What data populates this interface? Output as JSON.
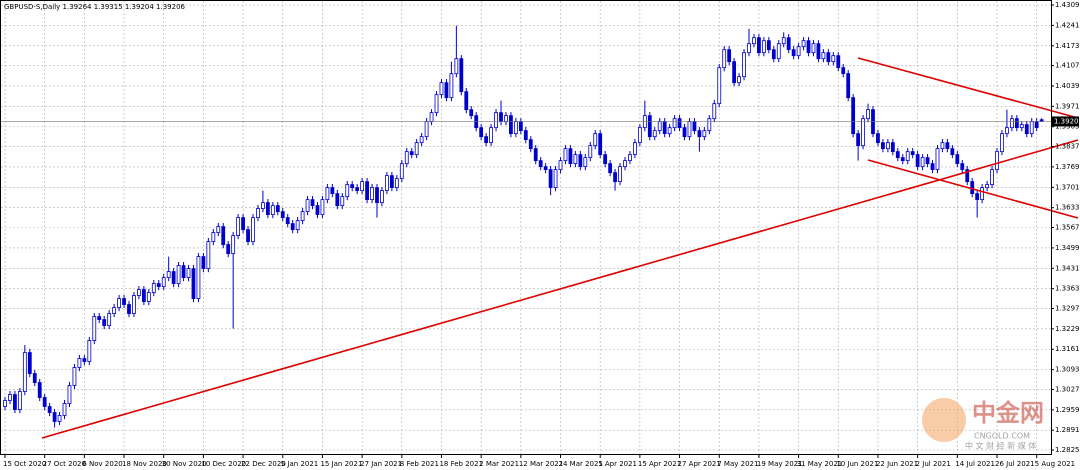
{
  "chart_data": {
    "type": "candlestick",
    "title": "GBPUSD-S,Daily  1.39264 1.39315 1.39204 1.39206",
    "up_color": "#ffffff",
    "down_color": "#0000cd",
    "outline_color": "#0000cd",
    "grid": true,
    "last_price": 1.39206,
    "ylim": [
      1.2825,
      1.4309
    ],
    "yticks": [
      {
        "value": 1.4309,
        "label": "1.43090"
      },
      {
        "value": 1.4241,
        "label": "1.42410"
      },
      {
        "value": 1.4173,
        "label": "1.41730"
      },
      {
        "value": 1.4107,
        "label": "1.41070"
      },
      {
        "value": 1.4039,
        "label": "1.40390"
      },
      {
        "value": 1.3971,
        "label": "1.39710"
      },
      {
        "value": 1.3903,
        "label": "1.39030"
      },
      {
        "value": 1.3837,
        "label": "1.38370"
      },
      {
        "value": 1.3769,
        "label": "1.37690"
      },
      {
        "value": 1.3701,
        "label": "1.37010"
      },
      {
        "value": 1.3633,
        "label": "1.36330"
      },
      {
        "value": 1.3567,
        "label": "1.35670"
      },
      {
        "value": 1.3499,
        "label": "1.34990"
      },
      {
        "value": 1.3431,
        "label": "1.34310"
      },
      {
        "value": 1.3363,
        "label": "1.33630"
      },
      {
        "value": 1.3297,
        "label": "1.32970"
      },
      {
        "value": 1.3229,
        "label": "1.32290"
      },
      {
        "value": 1.3161,
        "label": "1.31610"
      },
      {
        "value": 1.3093,
        "label": "1.30930"
      },
      {
        "value": 1.3027,
        "label": "1.30270"
      },
      {
        "value": 1.2959,
        "label": "1.29590"
      },
      {
        "value": 1.2891,
        "label": "1.28910"
      },
      {
        "value": 1.2825,
        "label": "1.28250"
      }
    ],
    "categories": [
      "15 Oct 2020",
      null,
      null,
      null,
      null,
      null,
      null,
      null,
      "27 Oct 2020",
      null,
      null,
      null,
      null,
      null,
      null,
      null,
      "6 Nov 2020",
      null,
      null,
      null,
      null,
      null,
      null,
      null,
      "18 Nov 2020",
      null,
      null,
      null,
      null,
      null,
      null,
      null,
      "30 Nov 2020",
      null,
      null,
      null,
      null,
      null,
      null,
      null,
      "10 Dec 2020",
      null,
      null,
      null,
      null,
      null,
      null,
      null,
      "22 Dec 2020",
      null,
      null,
      null,
      null,
      null,
      null,
      null,
      "5 Jan 2021",
      null,
      null,
      null,
      null,
      null,
      null,
      null,
      "15 Jan 2021",
      null,
      null,
      null,
      null,
      null,
      null,
      null,
      "27 Jan 2021",
      null,
      null,
      null,
      null,
      null,
      null,
      null,
      "8 Feb 2021",
      null,
      null,
      null,
      null,
      null,
      null,
      null,
      "18 Feb 2021",
      null,
      null,
      null,
      null,
      null,
      null,
      null,
      "2 Mar 2021",
      null,
      null,
      null,
      null,
      null,
      null,
      null,
      "12 Mar 2021",
      null,
      null,
      null,
      null,
      null,
      null,
      null,
      "24 Mar 2021",
      null,
      null,
      null,
      null,
      null,
      null,
      null,
      "5 Apr 2021",
      null,
      null,
      null,
      null,
      null,
      null,
      null,
      "15 Apr 2021",
      null,
      null,
      null,
      null,
      null,
      null,
      null,
      "27 Apr 2021",
      null,
      null,
      null,
      null,
      null,
      null,
      null,
      "7 May 2021",
      null,
      null,
      null,
      null,
      null,
      null,
      null,
      "19 May 2021",
      null,
      null,
      null,
      null,
      null,
      null,
      null,
      "31 May 2021",
      null,
      null,
      null,
      null,
      null,
      null,
      null,
      "10 Jun 2021",
      null,
      null,
      null,
      null,
      null,
      null,
      null,
      "22 Jun 2021",
      null,
      null,
      null,
      null,
      null,
      null,
      null,
      "2 Jul 2021",
      null,
      null,
      null,
      null,
      null,
      null,
      null,
      "14 Jul 2021",
      null,
      null,
      null,
      null,
      null,
      null,
      null,
      "26 Jul 2021",
      null,
      null,
      null,
      null,
      null,
      null,
      null,
      "5 Aug 2021",
      null
    ],
    "open": [
      1.297,
      1.299,
      1.301,
      1.296,
      1.302,
      1.315,
      1.308,
      1.305,
      1.3,
      1.297,
      1.295,
      1.292,
      1.294,
      1.298,
      1.304,
      1.31,
      1.313,
      1.312,
      1.319,
      1.327,
      1.326,
      1.324,
      1.328,
      1.33,
      1.333,
      1.331,
      1.328,
      1.334,
      1.336,
      1.332,
      1.335,
      1.338,
      1.337,
      1.34,
      1.342,
      1.338,
      1.344,
      1.34,
      1.343,
      1.333,
      1.347,
      1.343,
      1.352,
      1.355,
      1.357,
      1.351,
      1.348,
      1.354,
      1.36,
      1.356,
      1.352,
      1.36,
      1.363,
      1.365,
      1.361,
      1.364,
      1.362,
      1.36,
      1.358,
      1.356,
      1.359,
      1.362,
      1.366,
      1.364,
      1.361,
      1.366,
      1.37,
      1.368,
      1.364,
      1.367,
      1.371,
      1.37,
      1.369,
      1.372,
      1.366,
      1.37,
      1.365,
      1.369,
      1.374,
      1.37,
      1.373,
      1.378,
      1.382,
      1.381,
      1.385,
      1.387,
      1.392,
      1.395,
      1.401,
      1.405,
      1.4,
      1.408,
      1.413,
      1.402,
      1.396,
      1.394,
      1.39,
      1.387,
      1.385,
      1.39,
      1.395,
      1.392,
      1.394,
      1.388,
      1.392,
      1.389,
      1.386,
      1.383,
      1.379,
      1.377,
      1.376,
      1.37,
      1.376,
      1.379,
      1.383,
      1.378,
      1.381,
      1.377,
      1.38,
      1.384,
      1.388,
      1.381,
      1.378,
      1.375,
      1.372,
      1.377,
      1.379,
      1.381,
      1.385,
      1.39,
      1.394,
      1.387,
      1.389,
      1.392,
      1.388,
      1.39,
      1.393,
      1.39,
      1.387,
      1.392,
      1.389,
      1.387,
      1.389,
      1.393,
      1.398,
      1.41,
      1.416,
      1.412,
      1.405,
      1.407,
      1.415,
      1.418,
      1.42,
      1.415,
      1.419,
      1.416,
      1.413,
      1.418,
      1.42,
      1.416,
      1.414,
      1.417,
      1.419,
      1.415,
      1.418,
      1.413,
      1.415,
      1.412,
      1.414,
      1.41,
      1.408,
      1.4,
      1.388,
      1.384,
      1.393,
      1.396,
      1.388,
      1.385,
      1.383,
      1.385,
      1.382,
      1.38,
      1.379,
      1.382,
      1.381,
      1.377,
      1.38,
      1.378,
      1.376,
      1.383,
      1.385,
      1.383,
      1.381,
      1.378,
      1.376,
      1.372,
      1.368,
      1.366,
      1.37,
      1.371,
      1.376,
      1.382,
      1.388,
      1.39,
      1.393,
      1.39,
      1.391,
      1.388,
      1.392,
      1.39264
    ],
    "high": [
      1.3002,
      1.3022,
      1.3022,
      1.3032,
      1.3175,
      1.3162,
      1.3092,
      1.3062,
      1.3012,
      1.2982,
      1.2962,
      1.2952,
      1.2992,
      1.3052,
      1.3112,
      1.3142,
      1.3142,
      1.3202,
      1.3282,
      1.3282,
      1.3272,
      1.3292,
      1.3312,
      1.3342,
      1.3342,
      1.3322,
      1.3352,
      1.3372,
      1.3372,
      1.3362,
      1.3392,
      1.3392,
      1.3412,
      1.347,
      1.3432,
      1.3452,
      1.3452,
      1.3442,
      1.3442,
      1.3482,
      1.3482,
      1.3532,
      1.3562,
      1.3582,
      1.3582,
      1.3522,
      1.3552,
      1.3612,
      1.3612,
      1.3572,
      1.3612,
      1.3642,
      1.369,
      1.3662,
      1.3652,
      1.3652,
      1.3632,
      1.3612,
      1.3592,
      1.3602,
      1.3632,
      1.3672,
      1.3672,
      1.3652,
      1.3672,
      1.3712,
      1.3712,
      1.3692,
      1.3682,
      1.3722,
      1.3722,
      1.3712,
      1.3732,
      1.3732,
      1.3712,
      1.3712,
      1.3702,
      1.3752,
      1.3752,
      1.3742,
      1.3792,
      1.3832,
      1.3832,
      1.3862,
      1.3882,
      1.3932,
      1.3962,
      1.4022,
      1.4062,
      1.4062,
      1.412,
      1.424,
      1.4142,
      1.4032,
      1.3972,
      1.3952,
      1.3912,
      1.3882,
      1.3912,
      1.3962,
      1.399,
      1.3952,
      1.3952,
      1.3932,
      1.3932,
      1.3902,
      1.3872,
      1.3842,
      1.3802,
      1.3782,
      1.3772,
      1.3772,
      1.3802,
      1.3842,
      1.3842,
      1.3822,
      1.3822,
      1.3812,
      1.3852,
      1.3892,
      1.3892,
      1.3822,
      1.3792,
      1.3762,
      1.3782,
      1.3802,
      1.3822,
      1.3862,
      1.3912,
      1.399,
      1.3952,
      1.3902,
      1.3932,
      1.3932,
      1.3912,
      1.3942,
      1.3942,
      1.3912,
      1.3932,
      1.3932,
      1.3902,
      1.3902,
      1.3942,
      1.3992,
      1.4112,
      1.4172,
      1.4172,
      1.4132,
      1.4082,
      1.4162,
      1.423,
      1.4212,
      1.4212,
      1.4202,
      1.4202,
      1.4172,
      1.4192,
      1.4218,
      1.4212,
      1.4172,
      1.4182,
      1.4202,
      1.4202,
      1.4192,
      1.4192,
      1.4162,
      1.4162,
      1.4152,
      1.4152,
      1.4112,
      1.4092,
      1.4012,
      1.3892,
      1.3942,
      1.398,
      1.3972,
      1.3892,
      1.3862,
      1.3862,
      1.3862,
      1.3832,
      1.3812,
      1.3832,
      1.3832,
      1.3822,
      1.3812,
      1.3812,
      1.3792,
      1.3842,
      1.3862,
      1.3862,
      1.3842,
      1.3822,
      1.3792,
      1.3772,
      1.3732,
      1.3692,
      1.3712,
      1.3722,
      1.3772,
      1.3832,
      1.3892,
      1.396,
      1.3942,
      1.3942,
      1.3922,
      1.3922,
      1.3932,
      1.3932,
      1.39315
    ],
    "low": [
      1.2958,
      1.2978,
      1.2948,
      1.2948,
      1.3008,
      1.3068,
      1.3038,
      1.2988,
      1.2958,
      1.2938,
      1.29,
      1.2908,
      1.2928,
      1.2968,
      1.3028,
      1.3088,
      1.3108,
      1.3108,
      1.3178,
      1.3248,
      1.3228,
      1.3228,
      1.3268,
      1.3288,
      1.3298,
      1.3268,
      1.3268,
      1.3328,
      1.3308,
      1.3308,
      1.3338,
      1.3358,
      1.3358,
      1.3388,
      1.3368,
      1.3368,
      1.3388,
      1.3388,
      1.3318,
      1.3318,
      1.3418,
      1.3418,
      1.3508,
      1.3538,
      1.3498,
      1.3468,
      1.323,
      1.3528,
      1.3548,
      1.3508,
      1.3508,
      1.3588,
      1.3618,
      1.3598,
      1.3598,
      1.3608,
      1.3588,
      1.3568,
      1.3548,
      1.3548,
      1.3578,
      1.3608,
      1.3628,
      1.3598,
      1.3598,
      1.3648,
      1.3668,
      1.3628,
      1.3628,
      1.3658,
      1.3688,
      1.3678,
      1.3678,
      1.3648,
      1.3648,
      1.36,
      1.3638,
      1.3678,
      1.3688,
      1.3688,
      1.3718,
      1.3768,
      1.3798,
      1.3798,
      1.3838,
      1.3858,
      1.3908,
      1.3938,
      1.3998,
      1.3988,
      1.3988,
      1.4068,
      1.4008,
      1.3948,
      1.3928,
      1.3888,
      1.3858,
      1.3838,
      1.3838,
      1.3888,
      1.3908,
      1.3908,
      1.3868,
      1.3868,
      1.3878,
      1.3848,
      1.3818,
      1.3778,
      1.3758,
      1.3748,
      1.3675,
      1.3688,
      1.3748,
      1.3778,
      1.3768,
      1.3768,
      1.3758,
      1.3758,
      1.3788,
      1.3828,
      1.3798,
      1.3768,
      1.3738,
      1.369,
      1.3708,
      1.3758,
      1.3778,
      1.3798,
      1.3838,
      1.3888,
      1.3858,
      1.3858,
      1.3878,
      1.3868,
      1.3868,
      1.3888,
      1.3888,
      1.3858,
      1.3858,
      1.3878,
      1.382,
      1.3858,
      1.3878,
      1.3918,
      1.3968,
      1.4088,
      1.4108,
      1.4038,
      1.4038,
      1.4058,
      1.4138,
      1.4168,
      1.4138,
      1.4138,
      1.4148,
      1.4118,
      1.4118,
      1.4168,
      1.4148,
      1.4128,
      1.4128,
      1.4158,
      1.4138,
      1.4138,
      1.4118,
      1.4118,
      1.4108,
      1.4108,
      1.4088,
      1.4068,
      1.3988,
      1.3868,
      1.379,
      1.3828,
      1.3918,
      1.3868,
      1.3838,
      1.3818,
      1.3818,
      1.3808,
      1.3788,
      1.3778,
      1.3778,
      1.3798,
      1.3758,
      1.3758,
      1.3768,
      1.3748,
      1.3748,
      1.3818,
      1.3818,
      1.3798,
      1.3768,
      1.3748,
      1.3708,
      1.3668,
      1.36,
      1.3648,
      1.3688,
      1.3698,
      1.3748,
      1.3808,
      1.3868,
      1.3888,
      1.3888,
      1.3888,
      1.3868,
      1.3868,
      1.3888,
      1.39204
    ],
    "close": [
      1.299,
      1.301,
      1.296,
      1.302,
      1.315,
      1.308,
      1.305,
      1.3,
      1.297,
      1.295,
      1.292,
      1.294,
      1.298,
      1.304,
      1.31,
      1.313,
      1.312,
      1.319,
      1.327,
      1.326,
      1.324,
      1.328,
      1.33,
      1.333,
      1.331,
      1.328,
      1.334,
      1.336,
      1.332,
      1.335,
      1.338,
      1.337,
      1.34,
      1.342,
      1.338,
      1.344,
      1.34,
      1.343,
      1.333,
      1.347,
      1.343,
      1.352,
      1.355,
      1.357,
      1.351,
      1.348,
      1.354,
      1.36,
      1.356,
      1.352,
      1.36,
      1.363,
      1.365,
      1.361,
      1.364,
      1.362,
      1.36,
      1.358,
      1.356,
      1.359,
      1.362,
      1.366,
      1.364,
      1.361,
      1.366,
      1.37,
      1.368,
      1.364,
      1.367,
      1.371,
      1.37,
      1.369,
      1.372,
      1.366,
      1.37,
      1.365,
      1.369,
      1.374,
      1.37,
      1.373,
      1.378,
      1.382,
      1.381,
      1.385,
      1.387,
      1.392,
      1.395,
      1.401,
      1.405,
      1.4,
      1.408,
      1.413,
      1.402,
      1.396,
      1.394,
      1.39,
      1.387,
      1.385,
      1.39,
      1.395,
      1.392,
      1.394,
      1.388,
      1.392,
      1.389,
      1.386,
      1.383,
      1.379,
      1.377,
      1.376,
      1.37,
      1.376,
      1.379,
      1.383,
      1.378,
      1.381,
      1.377,
      1.38,
      1.384,
      1.388,
      1.381,
      1.378,
      1.375,
      1.372,
      1.377,
      1.379,
      1.381,
      1.385,
      1.39,
      1.394,
      1.387,
      1.389,
      1.392,
      1.388,
      1.39,
      1.393,
      1.39,
      1.387,
      1.392,
      1.389,
      1.387,
      1.389,
      1.393,
      1.398,
      1.41,
      1.416,
      1.412,
      1.405,
      1.407,
      1.415,
      1.418,
      1.42,
      1.415,
      1.419,
      1.416,
      1.413,
      1.418,
      1.42,
      1.416,
      1.414,
      1.417,
      1.419,
      1.415,
      1.418,
      1.413,
      1.415,
      1.412,
      1.414,
      1.41,
      1.408,
      1.4,
      1.388,
      1.384,
      1.393,
      1.396,
      1.388,
      1.385,
      1.383,
      1.385,
      1.382,
      1.38,
      1.379,
      1.382,
      1.381,
      1.377,
      1.38,
      1.378,
      1.376,
      1.383,
      1.385,
      1.383,
      1.381,
      1.378,
      1.376,
      1.372,
      1.368,
      1.366,
      1.37,
      1.371,
      1.376,
      1.382,
      1.388,
      1.39,
      1.393,
      1.39,
      1.391,
      1.388,
      1.392,
      1.39,
      1.39206
    ],
    "watermark": [
      "中金网",
      "CNGOLD.COM",
      "中 文 财 经 新 媒 体"
    ]
  }
}
